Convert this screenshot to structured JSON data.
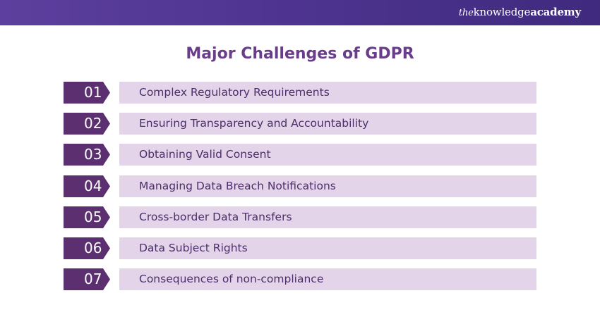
{
  "header": {
    "brand_the": "the",
    "brand_knowledge": "knowledge",
    "brand_academy": "academy"
  },
  "title": "Major Challenges of GDPR",
  "items": [
    {
      "number": "01",
      "label": "Complex Regulatory Requirements"
    },
    {
      "number": "02",
      "label": "Ensuring Transparency and Accountability"
    },
    {
      "number": "03",
      "label": "Obtaining Valid Consent"
    },
    {
      "number": "04",
      "label": "Managing Data Breach Notifications"
    },
    {
      "number": "05",
      "label": "Cross-border Data Transfers"
    },
    {
      "number": "06",
      "label": "Data Subject Rights"
    },
    {
      "number": "07",
      "label": "Consequences of non-compliance"
    }
  ],
  "colors": {
    "header_gradient_start": "#5d3f9e",
    "header_gradient_end": "#3f2a7e",
    "title": "#6a3d8a",
    "number_badge": "#5b2f70",
    "item_background": "#e3d4ea",
    "item_text": "#4e2e68"
  }
}
